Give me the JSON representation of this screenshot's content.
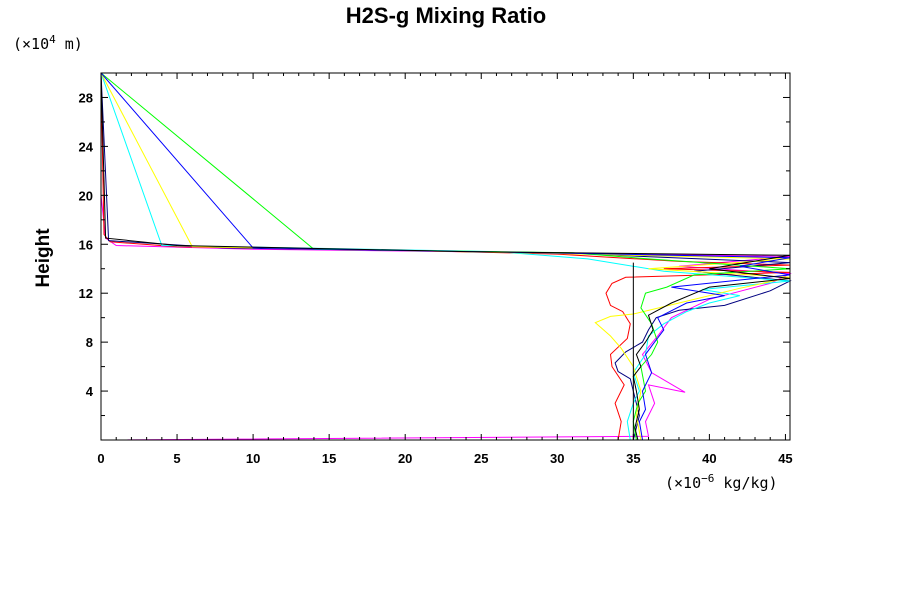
{
  "chart_data": {
    "type": "line",
    "title": "H2S-g Mixing Ratio",
    "ylabel": "Height",
    "xlabel": "",
    "y_unit_prefix": "(×10",
    "y_unit_exp": "4",
    "y_unit_suffix": " m)",
    "x_unit_prefix": "(×10",
    "x_unit_exp": "−6",
    "x_unit_suffix": " kg/kg)",
    "xlim": [
      0,
      45.3
    ],
    "ylim": [
      0,
      30
    ],
    "x_ticks": [
      0,
      5,
      10,
      15,
      20,
      25,
      30,
      35,
      40,
      45
    ],
    "y_ticks": [
      4,
      8,
      12,
      16,
      20,
      24,
      28
    ],
    "x_tick_labels": [
      "0",
      "5",
      "10",
      "15",
      "20",
      "25",
      "30",
      "35",
      "40",
      "45"
    ],
    "y_tick_labels": [
      "4",
      "8",
      "12",
      "16",
      "20",
      "24",
      "28"
    ],
    "grid": false,
    "reference_line": {
      "x": 35,
      "y_range": [
        0,
        14.5
      ],
      "color": "#000000"
    },
    "series": [
      {
        "color": "#ff00ff",
        "points": [
          [
            0.5,
            0
          ],
          [
            36,
            0.3
          ],
          [
            35.8,
            1.5
          ],
          [
            36.4,
            3
          ],
          [
            36,
            4.5
          ],
          [
            38.4,
            3.9
          ],
          [
            36.2,
            5.5
          ],
          [
            35.6,
            7
          ],
          [
            36.6,
            8.5
          ],
          [
            37.5,
            10
          ],
          [
            40,
            11.5
          ],
          [
            44,
            12.8
          ],
          [
            45.3,
            13.6
          ],
          [
            38,
            14.2
          ],
          [
            45.3,
            15
          ],
          [
            30,
            15.3
          ],
          [
            10,
            15.6
          ],
          [
            1,
            15.9
          ],
          [
            0.3,
            16.5
          ],
          [
            0,
            20
          ],
          [
            0,
            30
          ]
        ]
      },
      {
        "color": "#ff0000",
        "points": [
          [
            34,
            0
          ],
          [
            34.2,
            1.5
          ],
          [
            33.8,
            3
          ],
          [
            34.4,
            4.5
          ],
          [
            33.6,
            6
          ],
          [
            33.5,
            7
          ],
          [
            34.6,
            8.3
          ],
          [
            34.8,
            9.5
          ],
          [
            34.3,
            10.5
          ],
          [
            33.5,
            11
          ],
          [
            33.2,
            12
          ],
          [
            33.6,
            12.8
          ],
          [
            34.5,
            13.3
          ],
          [
            45.3,
            13.7
          ],
          [
            37,
            14
          ],
          [
            45.3,
            14.3
          ],
          [
            38,
            14.6
          ],
          [
            30,
            15.2
          ],
          [
            20,
            15.5
          ],
          [
            5,
            15.8
          ],
          [
            0.6,
            16.2
          ],
          [
            0.2,
            16.8
          ],
          [
            0,
            30
          ]
        ]
      },
      {
        "color": "#000080",
        "points": [
          [
            35,
            0
          ],
          [
            35.4,
            2
          ],
          [
            35,
            4
          ],
          [
            34.8,
            5
          ],
          [
            34,
            5.6
          ],
          [
            33.8,
            6.3
          ],
          [
            34.5,
            7.2
          ],
          [
            35.6,
            8
          ],
          [
            36,
            9
          ],
          [
            36.5,
            10
          ],
          [
            38,
            10.6
          ],
          [
            41,
            11
          ],
          [
            44,
            12.2
          ],
          [
            45.3,
            13
          ],
          [
            39,
            13.8
          ],
          [
            45.3,
            14.5
          ],
          [
            30,
            15.3
          ],
          [
            8,
            15.7
          ],
          [
            0.5,
            16.3
          ],
          [
            0,
            30
          ]
        ]
      },
      {
        "color": "#00ffff",
        "points": [
          [
            34.8,
            0
          ],
          [
            34.6,
            1.5
          ],
          [
            35,
            3
          ],
          [
            35.4,
            4
          ],
          [
            35,
            5.5
          ],
          [
            35.8,
            7
          ],
          [
            36,
            8.5
          ],
          [
            37,
            9.5
          ],
          [
            38.5,
            10.5
          ],
          [
            40,
            11.2
          ],
          [
            42,
            11.8
          ],
          [
            39.5,
            12.3
          ],
          [
            45.3,
            13
          ],
          [
            37,
            13.8
          ],
          [
            32,
            14.8
          ],
          [
            26,
            15.4
          ],
          [
            4,
            15.9
          ],
          [
            0,
            30
          ]
        ]
      },
      {
        "color": "#ffff00",
        "points": [
          [
            35.5,
            0
          ],
          [
            35.2,
            2
          ],
          [
            35.5,
            4
          ],
          [
            35,
            6
          ],
          [
            34.2,
            7.5
          ],
          [
            33.5,
            8.5
          ],
          [
            32.5,
            9.6
          ],
          [
            33.5,
            10.1
          ],
          [
            35,
            10.3
          ],
          [
            38,
            11.2
          ],
          [
            42,
            12.4
          ],
          [
            45.3,
            13.3
          ],
          [
            36,
            14
          ],
          [
            45.3,
            14.8
          ],
          [
            28,
            15.3
          ],
          [
            6,
            15.8
          ],
          [
            0,
            30
          ]
        ]
      },
      {
        "color": "#00ff00",
        "points": [
          [
            35.2,
            0
          ],
          [
            35,
            1.5
          ],
          [
            35.3,
            3
          ],
          [
            35.8,
            4
          ],
          [
            35.5,
            6
          ],
          [
            36.2,
            7
          ],
          [
            36.6,
            8
          ],
          [
            36.2,
            9.5
          ],
          [
            35.5,
            10.8
          ],
          [
            35.8,
            12
          ],
          [
            37.2,
            12.5
          ],
          [
            39,
            13.5
          ],
          [
            45.3,
            14
          ],
          [
            36,
            14.8
          ],
          [
            31,
            15.3
          ],
          [
            14,
            15.6
          ],
          [
            0,
            30
          ]
        ]
      },
      {
        "color": "#0000ff",
        "points": [
          [
            35.6,
            0
          ],
          [
            35.4,
            1.5
          ],
          [
            35.8,
            2.5
          ],
          [
            35.6,
            4
          ],
          [
            36.2,
            5.5
          ],
          [
            35.8,
            7
          ],
          [
            36.4,
            8
          ],
          [
            37,
            9
          ],
          [
            36.6,
            10
          ],
          [
            38.5,
            11.2
          ],
          [
            41,
            11.8
          ],
          [
            37.5,
            12.5
          ],
          [
            45.3,
            13.5
          ],
          [
            42,
            14.2
          ],
          [
            45.3,
            14.9
          ],
          [
            34,
            15.2
          ],
          [
            10,
            15.7
          ],
          [
            0,
            30
          ]
        ]
      },
      {
        "color": "#000000",
        "points": [
          [
            35.3,
            0
          ],
          [
            35.1,
            1
          ],
          [
            35.4,
            2.5
          ],
          [
            35.2,
            4
          ],
          [
            35,
            5.2
          ],
          [
            35.5,
            6
          ],
          [
            35.2,
            7
          ],
          [
            35.8,
            8
          ],
          [
            36.3,
            9
          ],
          [
            36,
            10.2
          ],
          [
            37.5,
            11.2
          ],
          [
            40,
            12.5
          ],
          [
            45.3,
            13.2
          ],
          [
            40,
            14
          ],
          [
            45.3,
            15.1
          ],
          [
            24,
            15.4
          ],
          [
            5,
            15.9
          ],
          [
            0.3,
            16.5
          ],
          [
            0,
            30
          ]
        ]
      }
    ]
  }
}
